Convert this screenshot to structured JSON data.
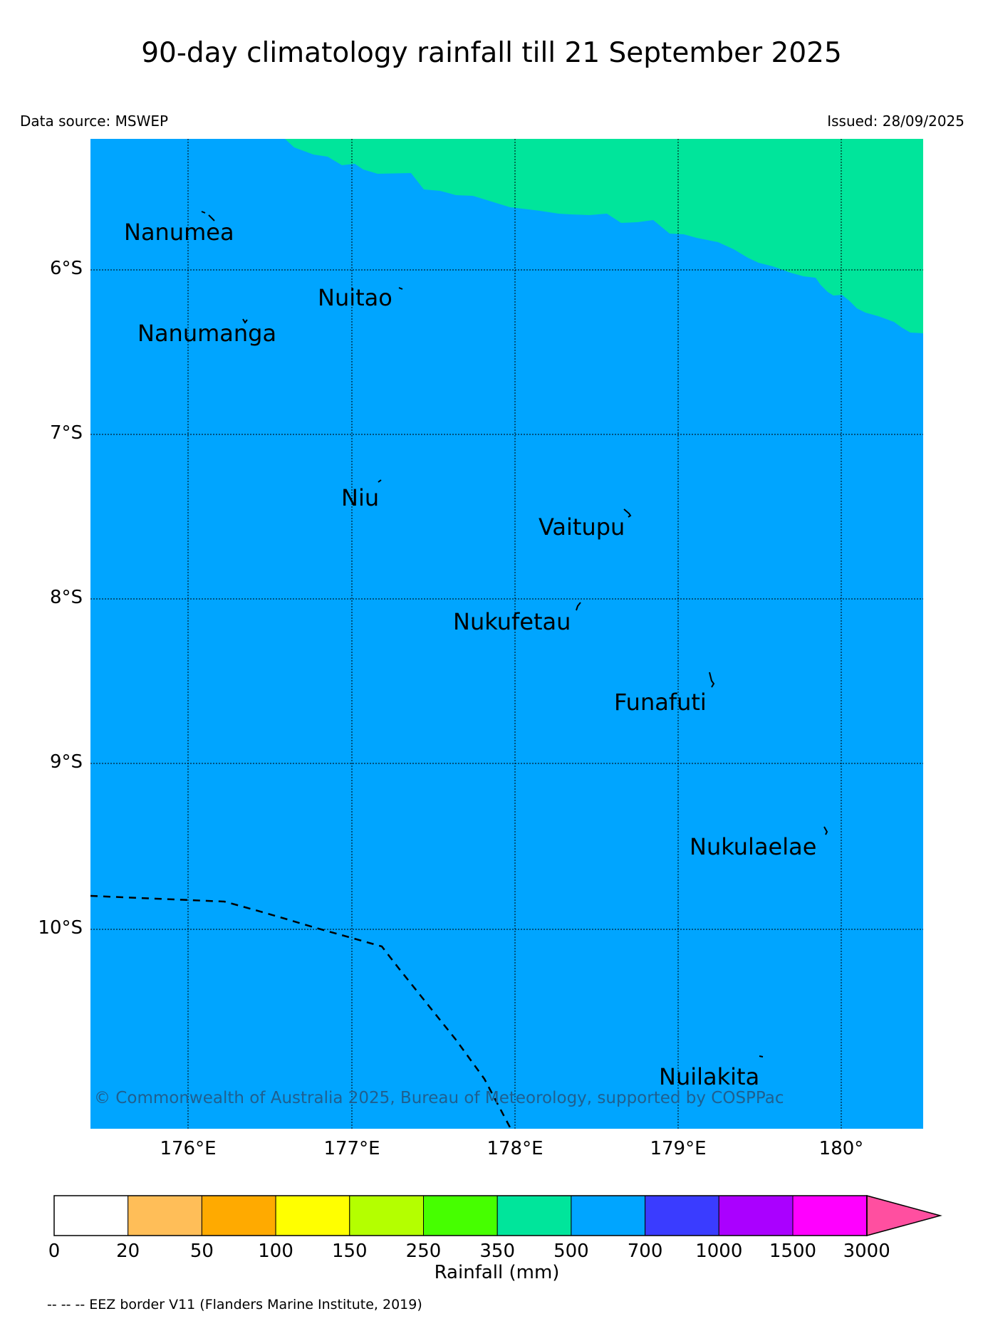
{
  "title": "90-day climatology rainfall till 21 September 2025",
  "data_source": "Data source: MSWEP",
  "issued": "Issued: 28/09/2025",
  "copyright": "© Commonwealth of Australia 2025, Bureau of Meteorology, supported by COSPPac",
  "eez_note": "-- -- -- EEZ border V11 (Flanders Marine Institute, 2019)",
  "colors": {
    "range_350_500": "#00e59b",
    "range_500_700": "#00a5ff",
    "coast": "#000000",
    "eez": "#000000"
  },
  "map": {
    "lat_labels": [
      "6°S",
      "7°S",
      "8°S",
      "9°S",
      "10°S"
    ],
    "lon_labels": [
      "176°E",
      "177°E",
      "178°E",
      "179°E",
      "180°"
    ],
    "places": [
      {
        "name": "Nanumea"
      },
      {
        "name": "Nuitao"
      },
      {
        "name": "Nanumanga"
      },
      {
        "name": "Niu"
      },
      {
        "name": "Vaitupu"
      },
      {
        "name": "Nukufetau"
      },
      {
        "name": "Funafuti"
      },
      {
        "name": "Nukulaelae"
      },
      {
        "name": "Nuilakita"
      }
    ]
  },
  "colorbar": {
    "title": "Rainfall (mm)",
    "ticks": [
      "0",
      "20",
      "50",
      "100",
      "150",
      "250",
      "350",
      "500",
      "700",
      "1000",
      "1500",
      "3000"
    ],
    "colors": [
      "#ffffff",
      "#ffbe58",
      "#ffaa00",
      "#ffff00",
      "#b4ff00",
      "#46ff00",
      "#00e59b",
      "#00a5ff",
      "#3a3cff",
      "#aa00ff",
      "#ff00ff",
      "#ff4fa0"
    ]
  }
}
